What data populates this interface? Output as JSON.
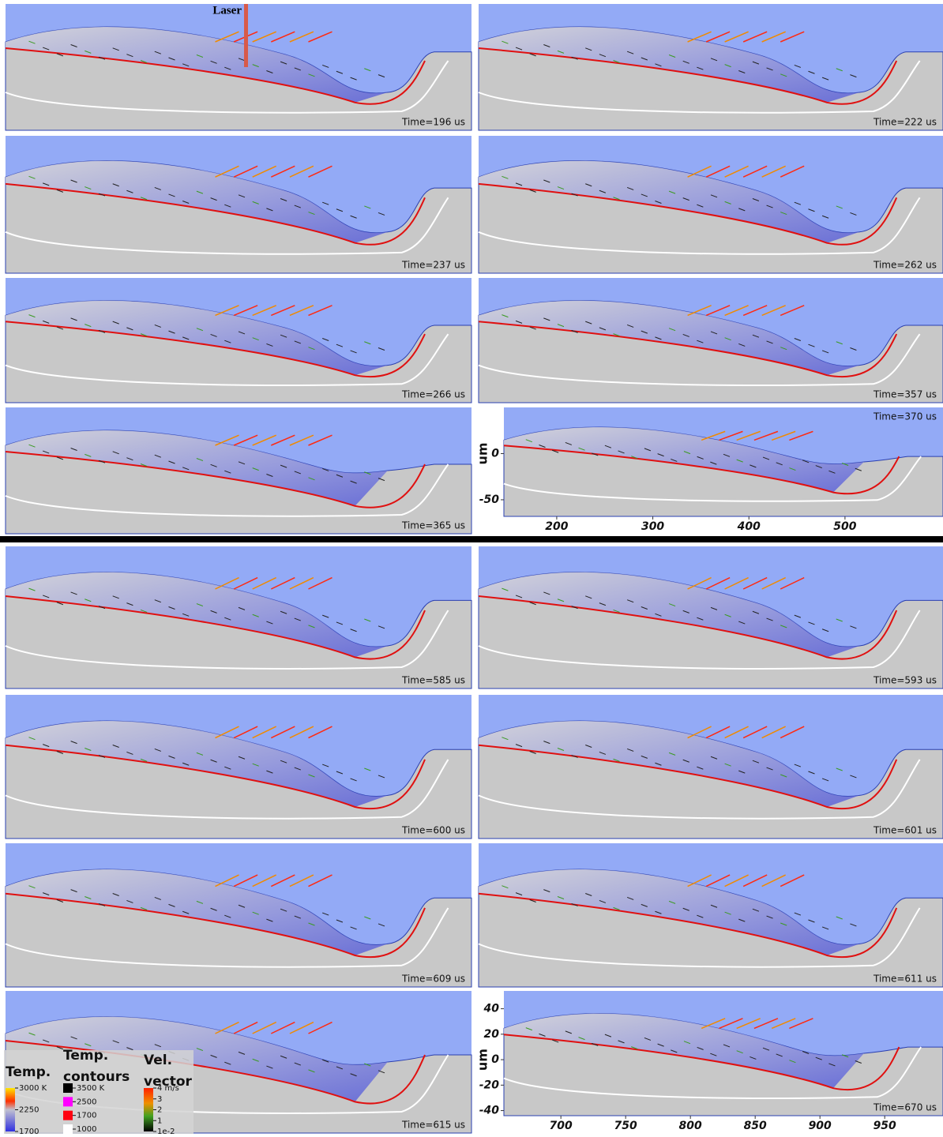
{
  "laser_label": "Laser",
  "top_panels": [
    "Time=196 us",
    "Time=222 us",
    "Time=237 us",
    "Time=262 us",
    "Time=266 us",
    "Time=357 us",
    "Time=365 us",
    "Time=370 us"
  ],
  "top_axis": {
    "ylabel": "um",
    "xlim": [
      145,
      602
    ],
    "ylim": [
      -68,
      50
    ],
    "xticks": [
      200,
      300,
      400,
      500
    ],
    "yticks": [
      0,
      -50
    ]
  },
  "bottom_panels": [
    "Time=585 us",
    "Time=593 us",
    "Time=600 us",
    "Time=601 us",
    "Time=609 us",
    "Time=611 us",
    "Time=615 us",
    "Time=670 us"
  ],
  "bottom_axis": {
    "ylabel": "um",
    "xlim": [
      656,
      995
    ],
    "ylim": [
      -44,
      54
    ],
    "xticks": [
      700,
      750,
      800,
      850,
      900,
      950
    ],
    "yticks": [
      40,
      20,
      0,
      -20,
      -40
    ]
  },
  "legend": {
    "temp": {
      "title": "Temp.",
      "labels": [
        "3000 K",
        "2250",
        "1700"
      ]
    },
    "contours": {
      "title": "Temp. contours",
      "labels": [
        "3500 K",
        "2500",
        "1700",
        "1000"
      ]
    },
    "velocity": {
      "title": "Vel. vector",
      "labels": [
        "4 m/s",
        "3",
        "2",
        "1",
        "1e-2"
      ]
    }
  }
}
